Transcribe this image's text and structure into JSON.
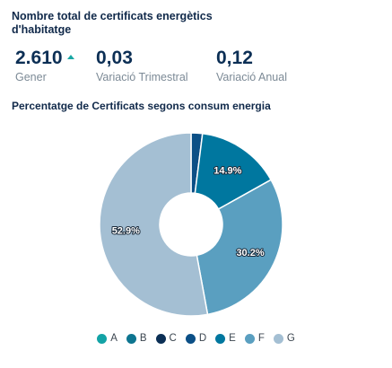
{
  "header": {
    "title": "Nombre total de certificats energètics d'habitatge"
  },
  "kpis": [
    {
      "value": "2.610",
      "label": "Gener",
      "trend": "up",
      "trend_color": "#1aa7a4"
    },
    {
      "value": "0,03",
      "label": "Variació Trimestral"
    },
    {
      "value": "0,12",
      "label": "Variació Anual"
    }
  ],
  "chart_data": {
    "type": "pie",
    "title": "Percentatge de Certificats segons consum energia",
    "donut": true,
    "legend_position": "bottom",
    "categories": [
      "A",
      "B",
      "C",
      "D",
      "E",
      "F",
      "G"
    ],
    "values": [
      0.0,
      0.0,
      0.0,
      2.0,
      14.9,
      30.2,
      52.9
    ],
    "colors": [
      "#13a3a6",
      "#0e7590",
      "#0b2f55",
      "#0b4f86",
      "#00779f",
      "#5a9fc0",
      "#a4bfd3"
    ],
    "data_labels": [
      "",
      "",
      "",
      "",
      "14.9%",
      "30.2%",
      "52.9%"
    ]
  }
}
